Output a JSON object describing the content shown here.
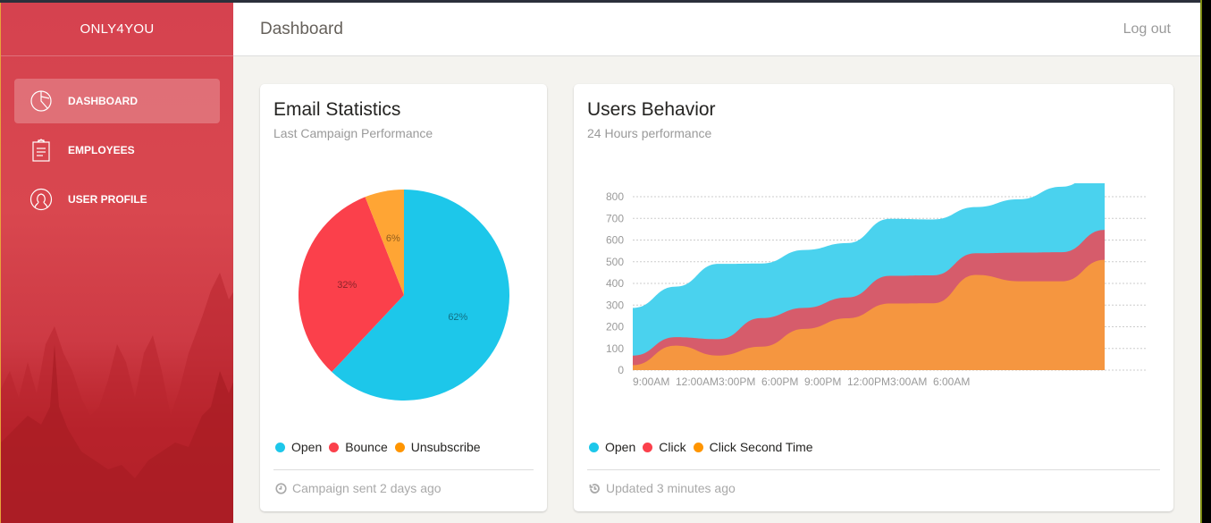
{
  "app": {
    "brand": "ONLY4YOU"
  },
  "sidebar": {
    "items": [
      {
        "label": "DASHBOARD",
        "icon": "pie-chart-icon",
        "active": true
      },
      {
        "label": "EMPLOYEES",
        "icon": "clipboard-icon",
        "active": false
      },
      {
        "label": "USER PROFILE",
        "icon": "user-icon",
        "active": false
      }
    ]
  },
  "header": {
    "title": "Dashboard",
    "logout_label": "Log out"
  },
  "email_card": {
    "title": "Email Statistics",
    "subtitle": "Last Campaign Performance",
    "legend": [
      "Open",
      "Bounce",
      "Unsubscribe"
    ],
    "footer": "Campaign sent 2 days ago",
    "footer_icon": "clock-icon"
  },
  "users_card": {
    "title": "Users Behavior",
    "subtitle": "24 Hours performance",
    "legend": [
      "Open",
      "Click",
      "Click Second Time"
    ],
    "footer": "Updated 3 minutes ago",
    "footer_icon": "history-icon"
  },
  "colors": {
    "open": "#1dc7ea",
    "bounce": "#fb404b",
    "unsubscribe": "#ffa534",
    "area_open": "#4ad2ee",
    "area_click": "#d65c6b",
    "area_second": "#f59640"
  },
  "chart_data": [
    {
      "type": "pie",
      "title": "Email Statistics",
      "categories": [
        "Open",
        "Bounce",
        "Unsubscribe"
      ],
      "values": [
        62,
        32,
        6
      ],
      "labels": [
        "62%",
        "32%",
        "6%"
      ]
    },
    {
      "type": "area",
      "title": "Users Behavior",
      "x": [
        "9:00AM",
        "12:00AM",
        "3:00PM",
        "6:00PM",
        "9:00PM",
        "12:00PM",
        "3:00AM",
        "6:00AM"
      ],
      "points": 12,
      "ylim": [
        0,
        800
      ],
      "yticks": [
        0,
        100,
        200,
        300,
        400,
        500,
        600,
        700,
        800
      ],
      "grid": true,
      "series": [
        {
          "name": "Open",
          "values": [
            287,
            385,
            490,
            492,
            554,
            586,
            698,
            695,
            752,
            788,
            846,
            944
          ]
        },
        {
          "name": "Click",
          "values": [
            67,
            152,
            143,
            240,
            287,
            335,
            435,
            437,
            539,
            542,
            544,
            647
          ]
        },
        {
          "name": "Click Second Time",
          "values": [
            23,
            113,
            67,
            108,
            190,
            239,
            307,
            308,
            439,
            410,
            410,
            509
          ]
        }
      ]
    }
  ]
}
